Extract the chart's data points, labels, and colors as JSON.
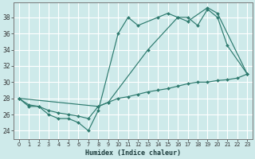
{
  "xlabel": "Humidex (Indice chaleur)",
  "background_color": "#ceeaea",
  "grid_color": "#b8d8d8",
  "line_color": "#2d7a6e",
  "xlim": [
    -0.5,
    23.5
  ],
  "ylim": [
    23.0,
    39.8
  ],
  "yticks": [
    24,
    26,
    28,
    30,
    32,
    34,
    36,
    38
  ],
  "xticks": [
    0,
    1,
    2,
    3,
    4,
    5,
    6,
    7,
    8,
    9,
    10,
    11,
    12,
    13,
    14,
    15,
    16,
    17,
    18,
    19,
    20,
    21,
    22,
    23
  ],
  "series1_x": [
    0,
    1,
    2,
    3,
    4,
    5,
    6,
    7,
    8,
    10,
    11,
    12,
    14,
    15,
    16,
    17,
    18,
    19,
    20,
    21,
    23
  ],
  "series1_y": [
    28,
    27,
    27,
    26,
    25.5,
    25.5,
    25,
    24,
    26.5,
    36,
    38,
    37,
    38,
    38.5,
    38,
    38,
    37,
    39,
    38,
    34.5,
    31
  ],
  "series2_x": [
    0,
    1,
    2,
    3,
    4,
    5,
    6,
    7,
    8,
    9,
    10,
    11,
    12,
    13,
    14,
    15,
    16,
    17,
    18,
    19,
    20,
    21,
    22,
    23
  ],
  "series2_y": [
    28,
    27.2,
    27.0,
    26.5,
    26.2,
    26.0,
    25.8,
    25.5,
    27.0,
    27.5,
    28.0,
    28.2,
    28.5,
    28.8,
    29.0,
    29.2,
    29.5,
    29.8,
    30.0,
    30.0,
    30.2,
    30.3,
    30.5,
    31.0
  ],
  "series3_x": [
    0,
    8,
    9,
    13,
    16,
    17,
    19,
    20,
    23
  ],
  "series3_y": [
    28,
    27,
    27.5,
    34,
    38,
    37.5,
    39.2,
    38.5,
    31
  ]
}
